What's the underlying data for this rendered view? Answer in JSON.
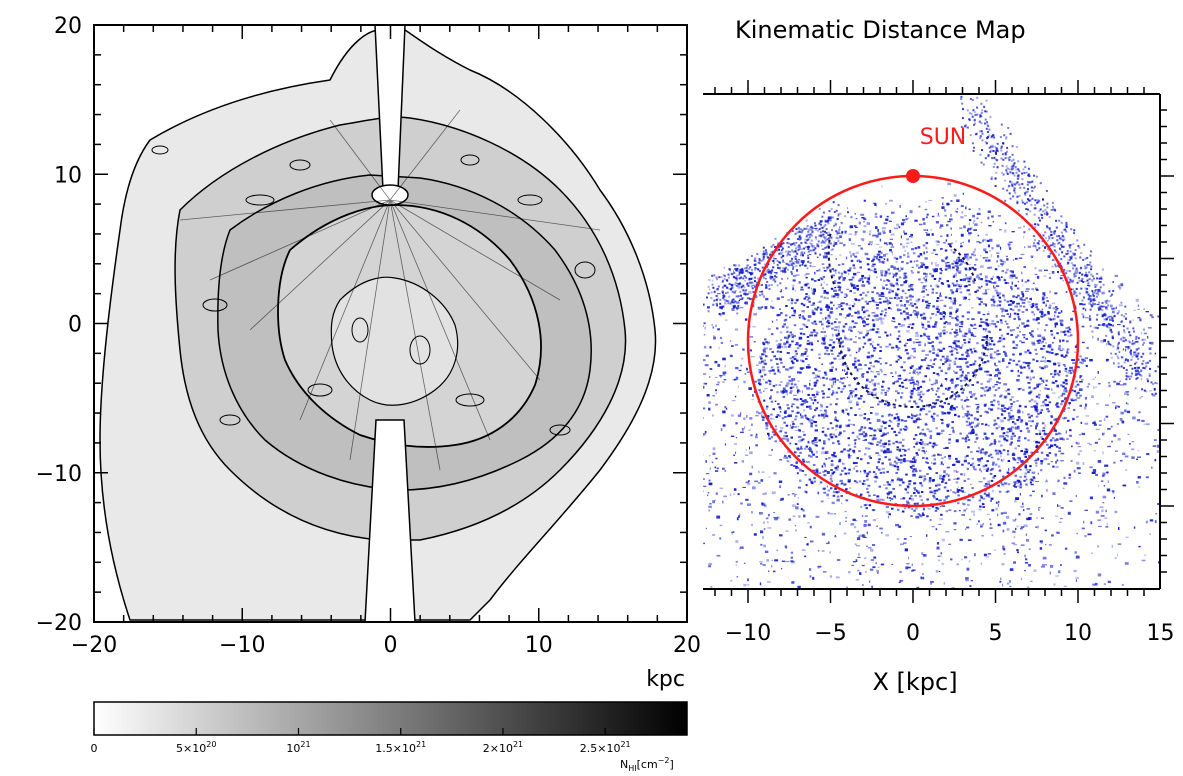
{
  "chart_data": [
    {
      "type": "heatmap",
      "title": "",
      "xlabel": "kpc",
      "ylabel": "",
      "xlim": [
        -20,
        20
      ],
      "ylim": [
        -20,
        20
      ],
      "x_ticks": [
        {
          "value": -20,
          "label": "−20"
        },
        {
          "value": -10,
          "label": "−10"
        },
        {
          "value": 0,
          "label": "0"
        },
        {
          "value": 10,
          "label": "10"
        },
        {
          "value": 20,
          "label": "20"
        }
      ],
      "y_ticks": [
        {
          "value": 20,
          "label": "20"
        },
        {
          "value": 10,
          "label": "10"
        },
        {
          "value": 0,
          "label": "0"
        },
        {
          "value": -10,
          "label": "−10"
        },
        {
          "value": -20,
          "label": "−20"
        }
      ],
      "colormap": "grayscale",
      "colorbar": {
        "unit_label": "N",
        "unit_sub": "HI",
        "unit_rest": "[cm",
        "unit_sup": "−2",
        "unit_close": "]",
        "range": [
          0,
          2.9e+21
        ],
        "ticks": [
          {
            "value": 0,
            "mant": "0",
            "exp": ""
          },
          {
            "value": 5e+20,
            "mant": "5×10",
            "exp": "20"
          },
          {
            "value": 1e+21,
            "mant": "10",
            "exp": "21"
          },
          {
            "value": 1.5e+21,
            "mant": "1.5×10",
            "exp": "21"
          },
          {
            "value": 2e+21,
            "mant": "2×10",
            "exp": "21"
          },
          {
            "value": 2.5e+21,
            "mant": "2.5×10",
            "exp": "21"
          }
        ]
      }
    },
    {
      "type": "scatter",
      "title": "Kinematic Distance Map",
      "xlabel": "X [kpc]",
      "xlim": [
        -12.5,
        15
      ],
      "x_ticks": [
        {
          "value": -10,
          "label": "−10"
        },
        {
          "value": -5,
          "label": "−5"
        },
        {
          "value": 0,
          "label": "0"
        },
        {
          "value": 5,
          "label": "5"
        },
        {
          "value": 10,
          "label": "10"
        },
        {
          "value": 15,
          "label": "15"
        }
      ],
      "point_color": "#0a14c8",
      "circle": {
        "center": [
          0,
          0
        ],
        "radius": 10,
        "color": "#ff1a1a"
      },
      "sun": {
        "x": 0,
        "y": 10,
        "label": "SUN",
        "color": "#ff1a1a"
      }
    }
  ]
}
